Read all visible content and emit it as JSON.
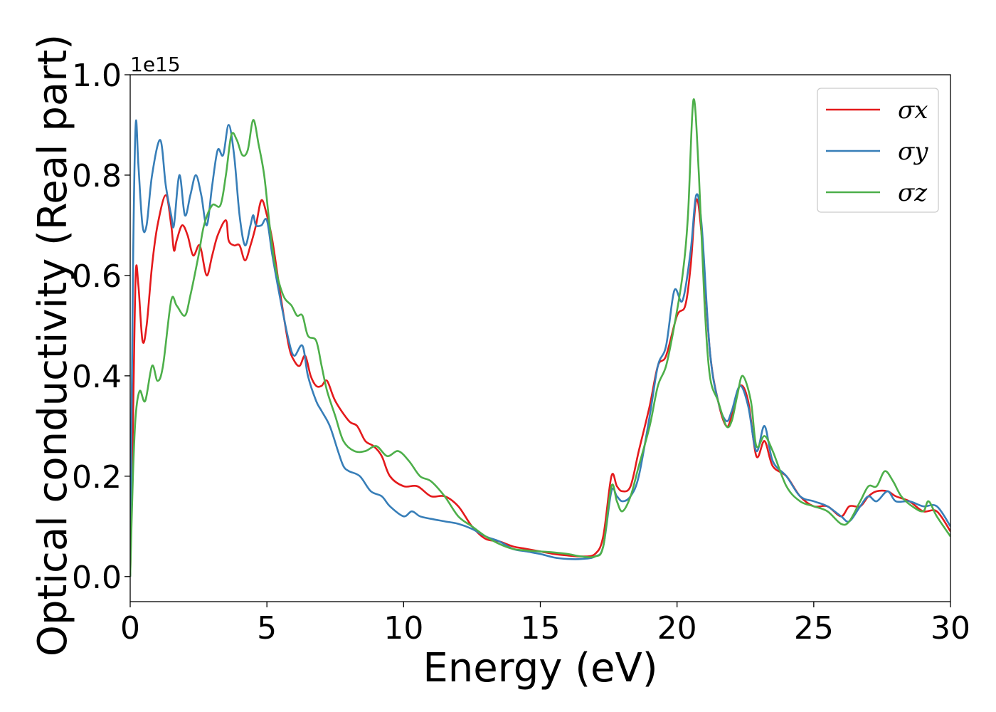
{
  "chart_data": {
    "type": "line",
    "xlabel": "Energy (eV)",
    "ylabel": "Optical conductivity (Real part)",
    "y_offset_label": "1e15",
    "xlim": [
      0,
      30
    ],
    "ylim": [
      -0.05,
      1.0
    ],
    "x_ticks": [
      0,
      5,
      10,
      15,
      20,
      25,
      30
    ],
    "x_tick_labels": [
      "0",
      "5",
      "10",
      "15",
      "20",
      "25",
      "30"
    ],
    "y_ticks": [
      0.0,
      0.2,
      0.4,
      0.6,
      0.8,
      1.0
    ],
    "y_tick_labels": [
      "0.0",
      "0.2",
      "0.4",
      "0.6",
      "0.8",
      "1.0"
    ],
    "grid": false,
    "legend_position": "top-right",
    "series": [
      {
        "name": "σx",
        "color": "#e41a1c",
        "points": [
          [
            0,
            0.0
          ],
          [
            0.1,
            0.3
          ],
          [
            0.2,
            0.6
          ],
          [
            0.3,
            0.58
          ],
          [
            0.45,
            0.47
          ],
          [
            0.6,
            0.5
          ],
          [
            0.8,
            0.62
          ],
          [
            1.0,
            0.7
          ],
          [
            1.3,
            0.76
          ],
          [
            1.5,
            0.7
          ],
          [
            1.6,
            0.65
          ],
          [
            1.7,
            0.67
          ],
          [
            1.9,
            0.7
          ],
          [
            2.1,
            0.68
          ],
          [
            2.3,
            0.64
          ],
          [
            2.5,
            0.66
          ],
          [
            2.6,
            0.65
          ],
          [
            2.8,
            0.6
          ],
          [
            3.0,
            0.64
          ],
          [
            3.2,
            0.68
          ],
          [
            3.5,
            0.71
          ],
          [
            3.6,
            0.67
          ],
          [
            3.8,
            0.66
          ],
          [
            4.0,
            0.66
          ],
          [
            4.2,
            0.63
          ],
          [
            4.4,
            0.66
          ],
          [
            4.6,
            0.7
          ],
          [
            4.8,
            0.75
          ],
          [
            5.0,
            0.72
          ],
          [
            5.2,
            0.67
          ],
          [
            5.5,
            0.56
          ],
          [
            5.8,
            0.46
          ],
          [
            6.0,
            0.43
          ],
          [
            6.2,
            0.42
          ],
          [
            6.4,
            0.44
          ],
          [
            6.6,
            0.4
          ],
          [
            6.8,
            0.38
          ],
          [
            7.0,
            0.38
          ],
          [
            7.2,
            0.39
          ],
          [
            7.5,
            0.35
          ],
          [
            8.0,
            0.31
          ],
          [
            8.3,
            0.3
          ],
          [
            8.6,
            0.27
          ],
          [
            8.9,
            0.26
          ],
          [
            9.2,
            0.24
          ],
          [
            9.5,
            0.2
          ],
          [
            10.0,
            0.18
          ],
          [
            10.5,
            0.18
          ],
          [
            11.0,
            0.16
          ],
          [
            11.5,
            0.16
          ],
          [
            12.0,
            0.14
          ],
          [
            12.5,
            0.1
          ],
          [
            13.0,
            0.075
          ],
          [
            13.5,
            0.07
          ],
          [
            14.0,
            0.06
          ],
          [
            14.5,
            0.055
          ],
          [
            15.0,
            0.05
          ],
          [
            15.5,
            0.045
          ],
          [
            16.0,
            0.042
          ],
          [
            16.5,
            0.04
          ],
          [
            17.0,
            0.045
          ],
          [
            17.3,
            0.08
          ],
          [
            17.6,
            0.2
          ],
          [
            17.8,
            0.18
          ],
          [
            18.0,
            0.17
          ],
          [
            18.3,
            0.18
          ],
          [
            18.6,
            0.25
          ],
          [
            19.0,
            0.34
          ],
          [
            19.3,
            0.42
          ],
          [
            19.6,
            0.44
          ],
          [
            20.0,
            0.52
          ],
          [
            20.3,
            0.54
          ],
          [
            20.5,
            0.62
          ],
          [
            20.7,
            0.75
          ],
          [
            20.9,
            0.68
          ],
          [
            21.2,
            0.45
          ],
          [
            21.5,
            0.35
          ],
          [
            21.8,
            0.3
          ],
          [
            22.0,
            0.32
          ],
          [
            22.3,
            0.38
          ],
          [
            22.6,
            0.35
          ],
          [
            22.9,
            0.24
          ],
          [
            23.2,
            0.27
          ],
          [
            23.5,
            0.22
          ],
          [
            24.0,
            0.2
          ],
          [
            24.5,
            0.16
          ],
          [
            25.0,
            0.14
          ],
          [
            25.5,
            0.14
          ],
          [
            26.0,
            0.12
          ],
          [
            26.3,
            0.14
          ],
          [
            26.7,
            0.14
          ],
          [
            27.0,
            0.16
          ],
          [
            27.3,
            0.17
          ],
          [
            27.7,
            0.17
          ],
          [
            28.0,
            0.16
          ],
          [
            28.5,
            0.15
          ],
          [
            29.0,
            0.13
          ],
          [
            29.5,
            0.13
          ],
          [
            30.0,
            0.09
          ]
        ]
      },
      {
        "name": "σy",
        "color": "#377eb8",
        "points": [
          [
            0,
            0.0
          ],
          [
            0.1,
            0.6
          ],
          [
            0.2,
            0.9
          ],
          [
            0.3,
            0.82
          ],
          [
            0.45,
            0.7
          ],
          [
            0.6,
            0.7
          ],
          [
            0.8,
            0.8
          ],
          [
            1.1,
            0.87
          ],
          [
            1.3,
            0.78
          ],
          [
            1.5,
            0.72
          ],
          [
            1.6,
            0.7
          ],
          [
            1.8,
            0.8
          ],
          [
            2.0,
            0.72
          ],
          [
            2.2,
            0.76
          ],
          [
            2.4,
            0.8
          ],
          [
            2.6,
            0.76
          ],
          [
            2.8,
            0.7
          ],
          [
            3.0,
            0.78
          ],
          [
            3.2,
            0.85
          ],
          [
            3.4,
            0.84
          ],
          [
            3.6,
            0.9
          ],
          [
            3.8,
            0.84
          ],
          [
            4.0,
            0.72
          ],
          [
            4.2,
            0.66
          ],
          [
            4.4,
            0.7
          ],
          [
            4.5,
            0.72
          ],
          [
            4.6,
            0.7
          ],
          [
            4.8,
            0.7
          ],
          [
            5.0,
            0.71
          ],
          [
            5.2,
            0.64
          ],
          [
            5.5,
            0.55
          ],
          [
            5.8,
            0.47
          ],
          [
            6.0,
            0.44
          ],
          [
            6.3,
            0.46
          ],
          [
            6.5,
            0.4
          ],
          [
            6.8,
            0.35
          ],
          [
            7.0,
            0.33
          ],
          [
            7.3,
            0.3
          ],
          [
            7.6,
            0.25
          ],
          [
            7.8,
            0.22
          ],
          [
            8.0,
            0.21
          ],
          [
            8.4,
            0.2
          ],
          [
            8.8,
            0.17
          ],
          [
            9.2,
            0.16
          ],
          [
            9.5,
            0.14
          ],
          [
            10.0,
            0.12
          ],
          [
            10.3,
            0.13
          ],
          [
            10.6,
            0.12
          ],
          [
            11.0,
            0.115
          ],
          [
            11.5,
            0.11
          ],
          [
            12.0,
            0.105
          ],
          [
            12.5,
            0.095
          ],
          [
            13.0,
            0.08
          ],
          [
            13.5,
            0.07
          ],
          [
            14.0,
            0.055
          ],
          [
            14.5,
            0.05
          ],
          [
            15.0,
            0.045
          ],
          [
            15.5,
            0.038
          ],
          [
            16.0,
            0.035
          ],
          [
            16.5,
            0.035
          ],
          [
            17.0,
            0.04
          ],
          [
            17.3,
            0.06
          ],
          [
            17.6,
            0.17
          ],
          [
            17.8,
            0.16
          ],
          [
            18.0,
            0.15
          ],
          [
            18.3,
            0.16
          ],
          [
            18.6,
            0.2
          ],
          [
            19.0,
            0.32
          ],
          [
            19.3,
            0.42
          ],
          [
            19.6,
            0.46
          ],
          [
            19.9,
            0.57
          ],
          [
            20.2,
            0.55
          ],
          [
            20.5,
            0.65
          ],
          [
            20.7,
            0.76
          ],
          [
            20.9,
            0.7
          ],
          [
            21.2,
            0.45
          ],
          [
            21.5,
            0.35
          ],
          [
            21.8,
            0.31
          ],
          [
            22.0,
            0.33
          ],
          [
            22.3,
            0.38
          ],
          [
            22.6,
            0.34
          ],
          [
            22.9,
            0.25
          ],
          [
            23.2,
            0.3
          ],
          [
            23.5,
            0.23
          ],
          [
            24.0,
            0.2
          ],
          [
            24.5,
            0.16
          ],
          [
            25.0,
            0.15
          ],
          [
            25.5,
            0.14
          ],
          [
            26.0,
            0.12
          ],
          [
            26.3,
            0.11
          ],
          [
            26.7,
            0.14
          ],
          [
            27.0,
            0.16
          ],
          [
            27.3,
            0.15
          ],
          [
            27.7,
            0.17
          ],
          [
            28.0,
            0.15
          ],
          [
            28.5,
            0.15
          ],
          [
            29.0,
            0.14
          ],
          [
            29.5,
            0.14
          ],
          [
            30.0,
            0.1
          ]
        ]
      },
      {
        "name": "σz",
        "color": "#4daf4a",
        "points": [
          [
            0,
            0.0
          ],
          [
            0.1,
            0.2
          ],
          [
            0.2,
            0.32
          ],
          [
            0.35,
            0.37
          ],
          [
            0.55,
            0.35
          ],
          [
            0.8,
            0.42
          ],
          [
            1.0,
            0.39
          ],
          [
            1.2,
            0.42
          ],
          [
            1.5,
            0.55
          ],
          [
            1.7,
            0.54
          ],
          [
            2.0,
            0.52
          ],
          [
            2.2,
            0.56
          ],
          [
            2.5,
            0.64
          ],
          [
            2.7,
            0.7
          ],
          [
            3.0,
            0.74
          ],
          [
            3.3,
            0.74
          ],
          [
            3.5,
            0.8
          ],
          [
            3.7,
            0.88
          ],
          [
            3.9,
            0.87
          ],
          [
            4.1,
            0.84
          ],
          [
            4.3,
            0.85
          ],
          [
            4.5,
            0.91
          ],
          [
            4.7,
            0.86
          ],
          [
            4.9,
            0.8
          ],
          [
            5.1,
            0.7
          ],
          [
            5.3,
            0.62
          ],
          [
            5.6,
            0.56
          ],
          [
            5.9,
            0.54
          ],
          [
            6.1,
            0.52
          ],
          [
            6.3,
            0.52
          ],
          [
            6.5,
            0.48
          ],
          [
            6.8,
            0.47
          ],
          [
            7.0,
            0.42
          ],
          [
            7.2,
            0.37
          ],
          [
            7.5,
            0.32
          ],
          [
            7.8,
            0.27
          ],
          [
            8.2,
            0.25
          ],
          [
            8.6,
            0.25
          ],
          [
            9.0,
            0.26
          ],
          [
            9.4,
            0.24
          ],
          [
            9.8,
            0.25
          ],
          [
            10.2,
            0.23
          ],
          [
            10.6,
            0.2
          ],
          [
            11.0,
            0.19
          ],
          [
            11.5,
            0.16
          ],
          [
            12.0,
            0.12
          ],
          [
            12.5,
            0.1
          ],
          [
            13.0,
            0.08
          ],
          [
            13.5,
            0.065
          ],
          [
            14.0,
            0.055
          ],
          [
            14.5,
            0.052
          ],
          [
            15.0,
            0.05
          ],
          [
            15.5,
            0.048
          ],
          [
            16.0,
            0.045
          ],
          [
            16.5,
            0.04
          ],
          [
            17.0,
            0.04
          ],
          [
            17.3,
            0.06
          ],
          [
            17.6,
            0.18
          ],
          [
            17.8,
            0.15
          ],
          [
            18.0,
            0.13
          ],
          [
            18.3,
            0.16
          ],
          [
            18.6,
            0.22
          ],
          [
            19.0,
            0.3
          ],
          [
            19.3,
            0.38
          ],
          [
            19.6,
            0.42
          ],
          [
            19.9,
            0.5
          ],
          [
            20.2,
            0.6
          ],
          [
            20.4,
            0.72
          ],
          [
            20.6,
            0.95
          ],
          [
            20.8,
            0.8
          ],
          [
            21.0,
            0.55
          ],
          [
            21.2,
            0.4
          ],
          [
            21.5,
            0.35
          ],
          [
            21.8,
            0.3
          ],
          [
            22.0,
            0.31
          ],
          [
            22.2,
            0.36
          ],
          [
            22.4,
            0.4
          ],
          [
            22.7,
            0.35
          ],
          [
            22.9,
            0.26
          ],
          [
            23.2,
            0.28
          ],
          [
            23.5,
            0.25
          ],
          [
            24.0,
            0.18
          ],
          [
            24.5,
            0.15
          ],
          [
            25.0,
            0.14
          ],
          [
            25.5,
            0.13
          ],
          [
            26.0,
            0.105
          ],
          [
            26.3,
            0.11
          ],
          [
            26.7,
            0.15
          ],
          [
            27.0,
            0.18
          ],
          [
            27.3,
            0.18
          ],
          [
            27.6,
            0.21
          ],
          [
            27.9,
            0.19
          ],
          [
            28.2,
            0.16
          ],
          [
            28.6,
            0.14
          ],
          [
            29.0,
            0.13
          ],
          [
            29.2,
            0.15
          ],
          [
            29.5,
            0.12
          ],
          [
            30.0,
            0.08
          ]
        ]
      }
    ]
  }
}
